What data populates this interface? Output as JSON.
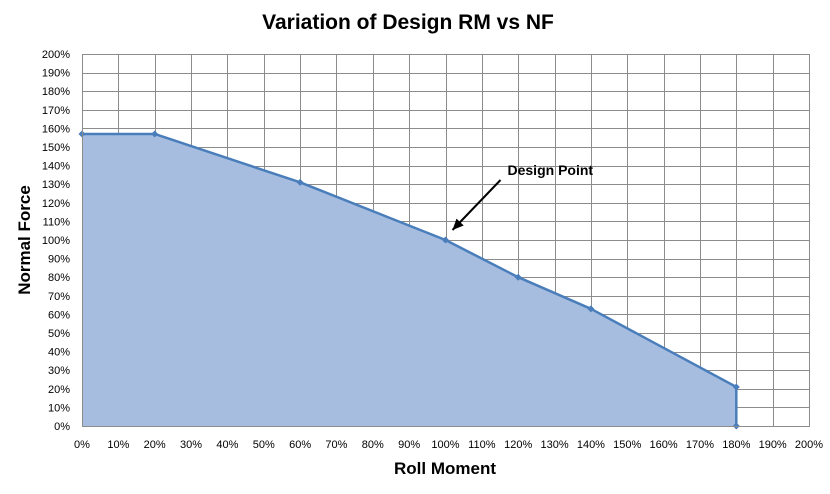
{
  "chart_data": {
    "type": "area",
    "title": "Variation of Design RM vs NF",
    "xlabel": "Roll Moment",
    "ylabel": "Normal Force",
    "xlim": [
      0,
      200
    ],
    "ylim": [
      0,
      200
    ],
    "x_ticks": [
      "0%",
      "10%",
      "20%",
      "30%",
      "40%",
      "50%",
      "60%",
      "70%",
      "80%",
      "90%",
      "100%",
      "110%",
      "120%",
      "130%",
      "140%",
      "150%",
      "160%",
      "170%",
      "180%",
      "190%",
      "200%"
    ],
    "y_ticks": [
      "0%",
      "10%",
      "20%",
      "30%",
      "40%",
      "50%",
      "60%",
      "70%",
      "80%",
      "90%",
      "100%",
      "110%",
      "120%",
      "130%",
      "140%",
      "150%",
      "160%",
      "170%",
      "180%",
      "190%",
      "200%"
    ],
    "grid": true,
    "series": [
      {
        "x": [
          0,
          20,
          60,
          100,
          120,
          140,
          180,
          180
        ],
        "y": [
          157,
          157,
          131,
          100,
          80,
          63,
          21,
          0
        ]
      }
    ],
    "annotations": [
      {
        "text": "Design Point",
        "x": 100,
        "y": 100
      }
    ],
    "colors": {
      "fill": "#a7bde0",
      "line": "#4a7ebb",
      "grid": "#8c8c8c"
    }
  }
}
